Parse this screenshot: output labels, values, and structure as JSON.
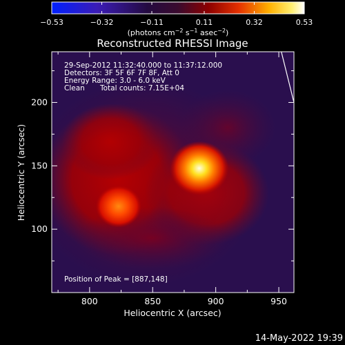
{
  "chart_data": {
    "type": "heatmap",
    "title": "Reconstructed RHESSI Image",
    "xlabel": "Heliocentric X (arcsec)",
    "ylabel": "Heliocentric Y (arcsec)",
    "xlim": [
      770,
      962
    ],
    "ylim": [
      50,
      240
    ],
    "x_ticks": [
      800,
      850,
      900,
      950
    ],
    "x_tick_labels": [
      "800",
      "850",
      "900",
      "950"
    ],
    "y_ticks": [
      100,
      150,
      200
    ],
    "y_tick_labels": [
      "100",
      "150",
      "200"
    ],
    "colorbar": {
      "range": [
        -0.53,
        0.53
      ],
      "tick_values": [
        -0.53,
        -0.32,
        -0.11,
        0.11,
        0.32,
        0.53
      ],
      "tick_labels": [
        "−0.53",
        "−0.32",
        "−0.11",
        "0.11",
        "0.32",
        "0.53"
      ],
      "units_prefix": "(photons cm",
      "units_sup1": "−2",
      "units_mid": " s",
      "units_sup2": "−1",
      "units_mid2": " asec",
      "units_sup3": "−2",
      "units_suffix": ")"
    },
    "sources": [
      {
        "x": 887,
        "y": 148,
        "intensity": 0.53,
        "sigma": 9
      },
      {
        "x": 823,
        "y": 118,
        "intensity": 0.3,
        "sigma": 7
      }
    ],
    "peak": [
      887,
      148
    ],
    "limb_curve": [
      [
        952,
        240
      ],
      [
        962,
        200
      ],
      [
        967,
        160
      ],
      [
        969,
        120
      ],
      [
        968,
        80
      ],
      [
        965,
        50
      ]
    ]
  },
  "annotations": {
    "time_range": "29-Sep-2012 11:32:40.000 to 11:37:12.000",
    "detectors": "Detectors: 3F 5F 6F 7F 8F, Att 0",
    "energy": "Energy Range: 3.0 - 6.0 keV",
    "clean": "Clean",
    "counts": "Total counts: 7.15E+04",
    "peak_label": "Position of Peak = [887,148]"
  },
  "timestamp": "14-May-2022 19:39",
  "colors": {
    "background": "#000000",
    "map_background": "#2a0f4e",
    "text": "#ffffff"
  }
}
